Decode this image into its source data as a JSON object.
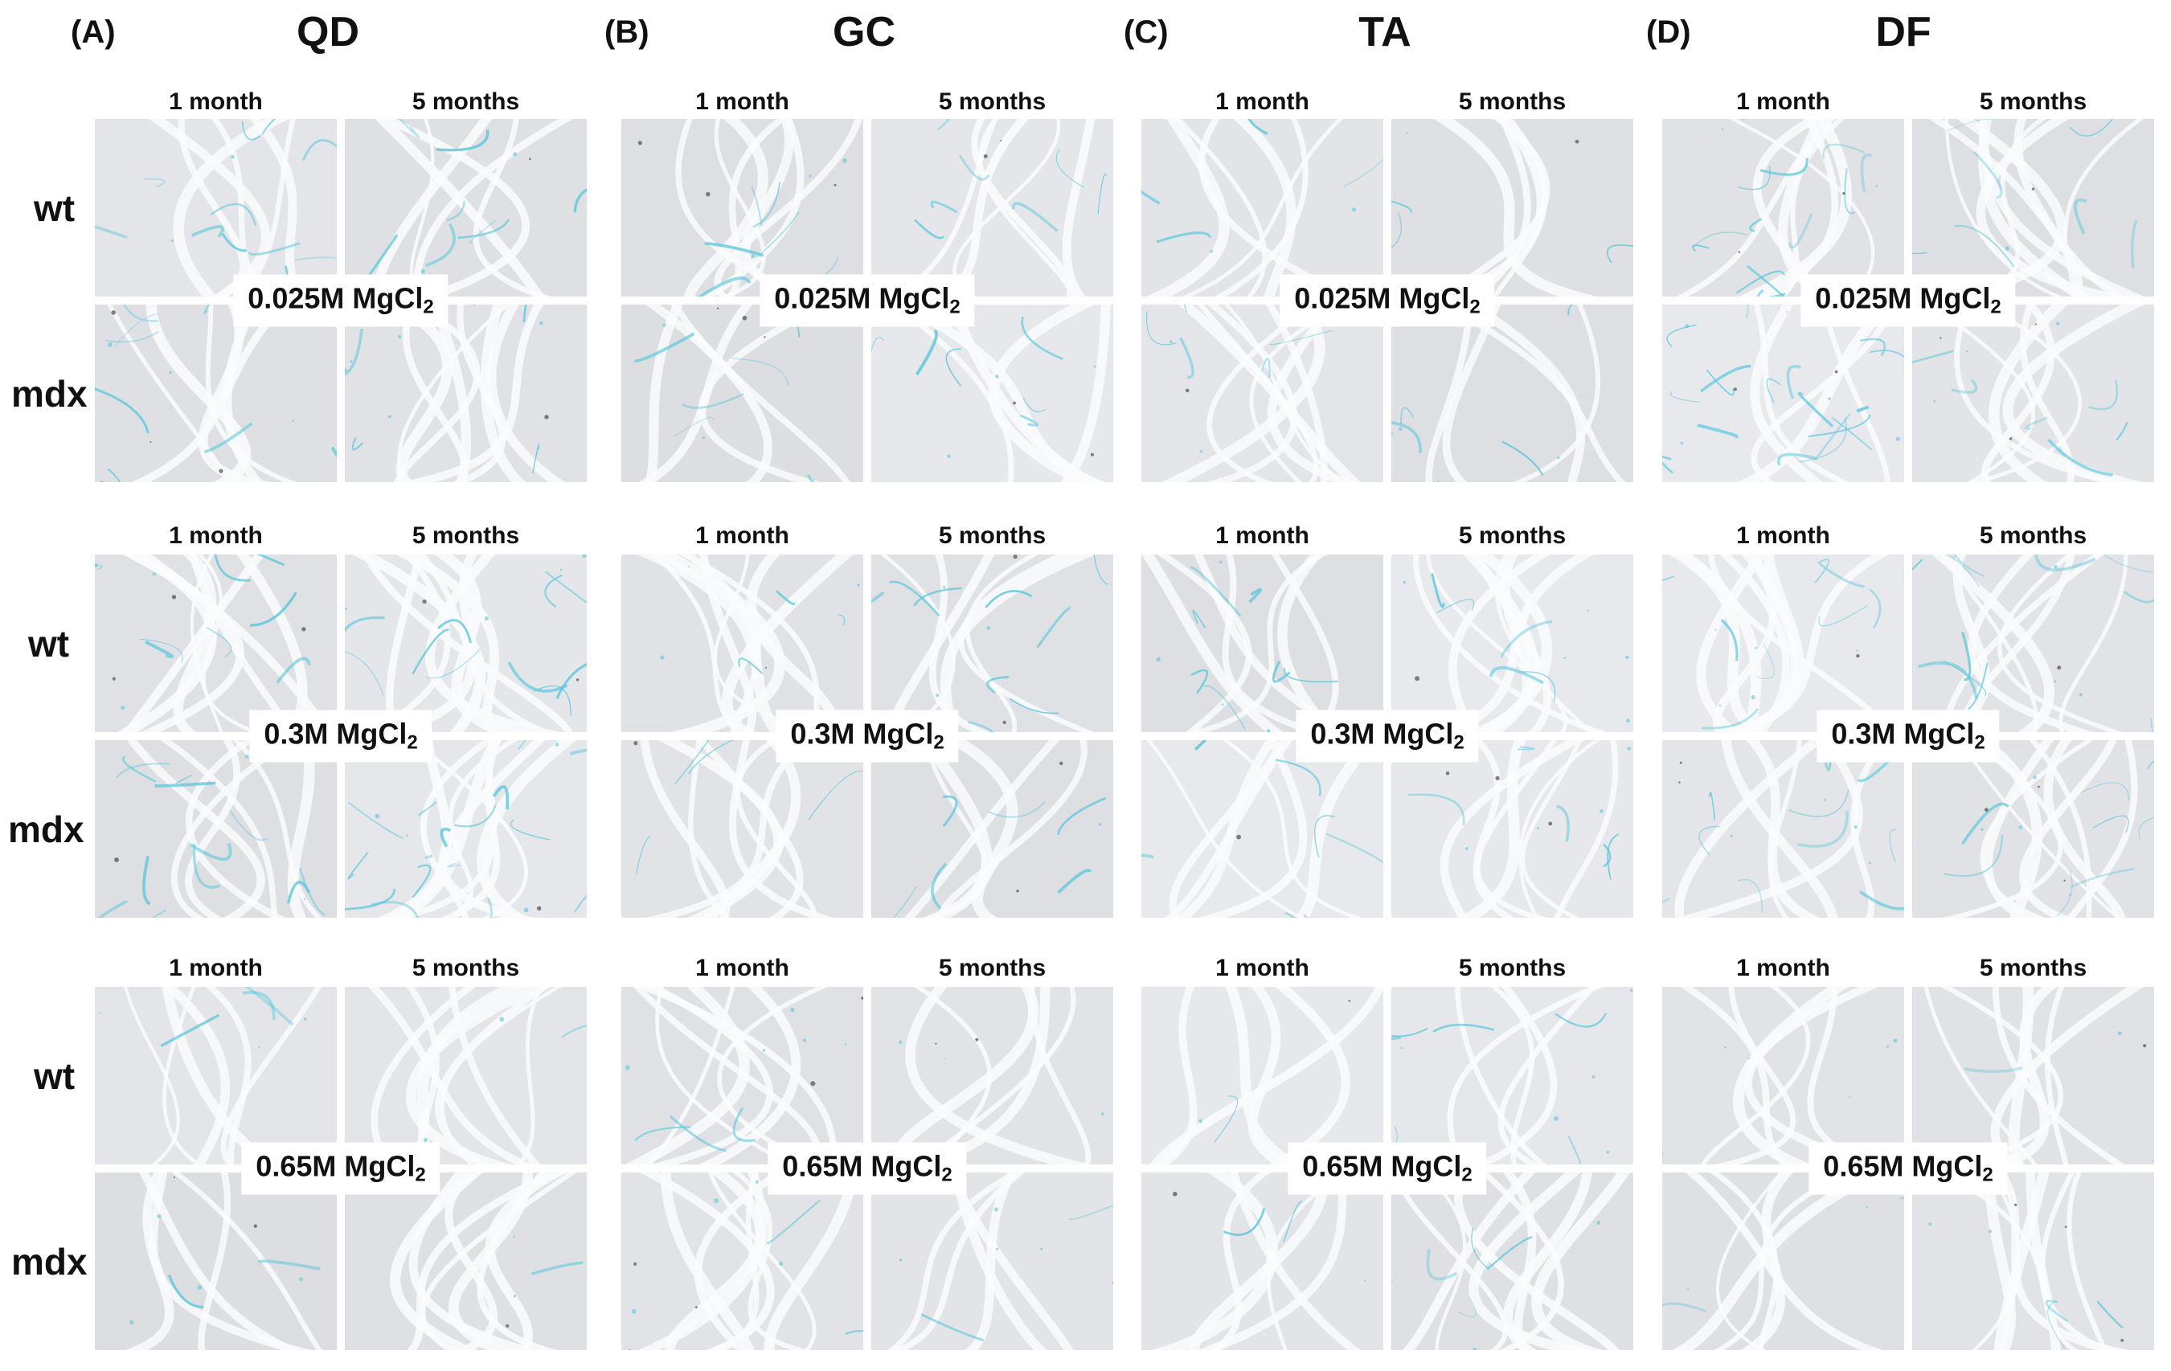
{
  "columns": [
    {
      "panel": "(A)",
      "muscle": "QD"
    },
    {
      "panel": "(B)",
      "muscle": "GC"
    },
    {
      "panel": "(C)",
      "muscle": "TA"
    },
    {
      "panel": "(D)",
      "muscle": "DF"
    }
  ],
  "ages": [
    "1 month",
    "5 months"
  ],
  "genotypes": [
    "wt",
    "mdx"
  ],
  "concentrations": [
    {
      "value": "0.025M MgCl",
      "subscript": "2"
    },
    {
      "value": "0.3M MgCl",
      "subscript": "2"
    },
    {
      "value": "0.65M MgCl",
      "subscript": "2"
    }
  ],
  "colors": {
    "background": "#ffffff",
    "tissue": "#e4e6e8",
    "stain": "#58c6dc"
  }
}
